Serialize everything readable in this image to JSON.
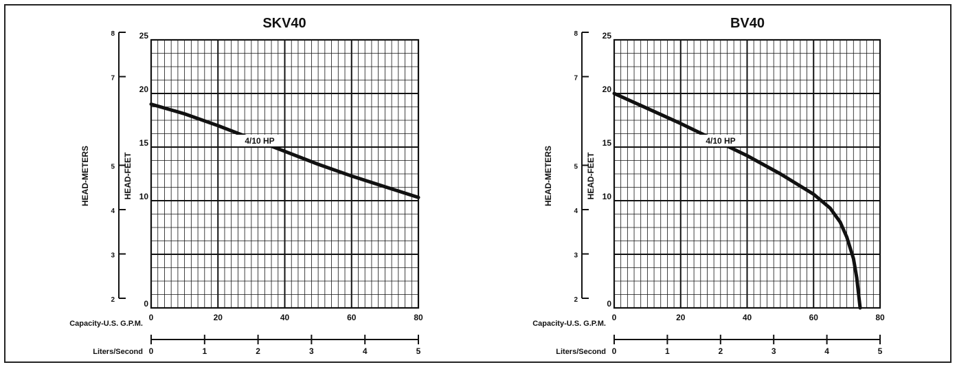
{
  "chart_data": [
    {
      "type": "line",
      "title": "SKV40",
      "xlabel": "Capacity-U.S. G.P.M.",
      "ylabel": "HEAD-FEET",
      "ylabel2": "HEAD-METERS",
      "xlabel2": "Liters/Second",
      "xlim": [
        0,
        80
      ],
      "ylim": [
        0,
        25
      ],
      "x_ticks": [
        "0",
        "20",
        "40",
        "60",
        "80"
      ],
      "y_ticks": [
        "0",
        "10",
        "15",
        "20",
        "25"
      ],
      "meter_ticks": [
        "2",
        "3",
        "4",
        "5",
        "7",
        "8"
      ],
      "lps_ticks": [
        "0",
        "1",
        "2",
        "3",
        "4",
        "5"
      ],
      "grid": true,
      "series": [
        {
          "name": "4/10 HP",
          "x": [
            0,
            10,
            20,
            30,
            40,
            50,
            60,
            70,
            80
          ],
          "y": [
            19.0,
            18.1,
            17.0,
            15.8,
            14.6,
            13.4,
            12.3,
            11.3,
            10.3
          ]
        }
      ]
    },
    {
      "type": "line",
      "title": "BV40",
      "xlabel": "Capacity-U.S. G.P.M.",
      "ylabel": "HEAD-FEET",
      "ylabel2": "HEAD-METERS",
      "xlabel2": "Liters/Second",
      "xlim": [
        0,
        80
      ],
      "ylim": [
        0,
        25
      ],
      "x_ticks": [
        "0",
        "20",
        "40",
        "60",
        "80"
      ],
      "y_ticks": [
        "0",
        "10",
        "15",
        "20",
        "25"
      ],
      "meter_ticks": [
        "2",
        "3",
        "4",
        "5",
        "7",
        "8"
      ],
      "lps_ticks": [
        "0",
        "1",
        "2",
        "3",
        "4",
        "5"
      ],
      "grid": true,
      "series": [
        {
          "name": "4/10 HP",
          "x": [
            0,
            10,
            20,
            30,
            40,
            50,
            60,
            65,
            68,
            70,
            72,
            73,
            74
          ],
          "y": [
            20.0,
            18.6,
            17.2,
            15.7,
            14.2,
            12.5,
            10.6,
            9.3,
            8.0,
            6.6,
            4.6,
            2.8,
            0.0
          ]
        }
      ]
    }
  ]
}
